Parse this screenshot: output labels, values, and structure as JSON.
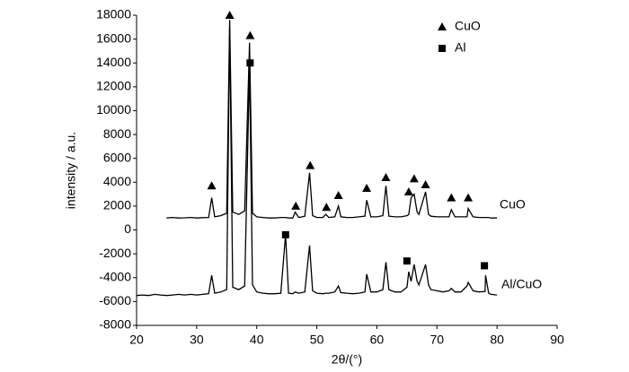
{
  "chart_data": {
    "type": "line",
    "xlabel": "2θ/(°)",
    "ylabel": "intensity / a.u.",
    "xlim": [
      20,
      90
    ],
    "xticks": [
      20,
      30,
      40,
      50,
      60,
      70,
      80,
      90
    ],
    "ylim": [
      -8000,
      18000
    ],
    "yticks": [
      -8000,
      -6000,
      -4000,
      -2000,
      0,
      2000,
      4000,
      6000,
      8000,
      10000,
      12000,
      14000,
      16000,
      18000
    ],
    "x": [
      20,
      21,
      22,
      23,
      24,
      25,
      26,
      27,
      28,
      29,
      30,
      31,
      32,
      32.5,
      33,
      34,
      35,
      35.5,
      36,
      37,
      38,
      38.8,
      39.3,
      40,
      41,
      42,
      43,
      44,
      44.8,
      45.3,
      46,
      46.4,
      47,
      48,
      48.8,
      49.3,
      50,
      51,
      51.5,
      52,
      53,
      53.6,
      54,
      55,
      56,
      57,
      58,
      58.3,
      59,
      60,
      61,
      61.5,
      62,
      63,
      64,
      65,
      65.3,
      65.7,
      66.2,
      66.7,
      67,
      68.1,
      68.6,
      69,
      70,
      71,
      72,
      72.4,
      73,
      74,
      75,
      75.2,
      76,
      77,
      78,
      78.1,
      78.6,
      79,
      80
    ],
    "series": [
      {
        "name": "CuO",
        "color": "#000000",
        "values": [
          null,
          null,
          null,
          null,
          null,
          1000,
          1050,
          1000,
          1020,
          1050,
          1000,
          1030,
          1050,
          2700,
          1100,
          1200,
          1400,
          17600,
          1500,
          1300,
          1600,
          15700,
          1400,
          1100,
          1050,
          1000,
          1000,
          1050,
          1050,
          1000,
          1000,
          1500,
          1050,
          1150,
          4800,
          1200,
          1050,
          1050,
          1300,
          1050,
          1100,
          2000,
          1100,
          1050,
          1050,
          1100,
          1150,
          2500,
          1100,
          1100,
          1200,
          3700,
          1150,
          1100,
          1100,
          1200,
          1300,
          2700,
          3000,
          1500,
          1300,
          3200,
          1300,
          1150,
          1100,
          1100,
          1100,
          1700,
          1100,
          1100,
          1100,
          1800,
          1100,
          1050,
          1050,
          1050,
          1050,
          1000,
          1000
        ]
      },
      {
        "name": "Al/CuO",
        "color": "#000000",
        "values": [
          -5500,
          -5450,
          -5500,
          -5400,
          -5450,
          -5500,
          -5450,
          -5400,
          -5450,
          -5400,
          -5450,
          -5400,
          -5350,
          -3800,
          -5300,
          -5200,
          -5000,
          17000,
          -4800,
          -5000,
          -4700,
          13800,
          -4600,
          -5200,
          -5300,
          -5350,
          -5350,
          -5300,
          -400,
          -5300,
          -5350,
          -5200,
          -5300,
          -5200,
          -1300,
          -5100,
          -5300,
          -5350,
          -5300,
          -5300,
          -5200,
          -4700,
          -5250,
          -5300,
          -5350,
          -5300,
          -5200,
          -3700,
          -5200,
          -5200,
          -5000,
          -2700,
          -5000,
          -5200,
          -5200,
          -4800,
          -3500,
          -4300,
          -2900,
          -4300,
          -4600,
          -2900,
          -4600,
          -5000,
          -5100,
          -5200,
          -5100,
          -4900,
          -5200,
          -5200,
          -4700,
          -4400,
          -5100,
          -5200,
          -5150,
          -3800,
          -5300,
          -5400,
          -5450
        ]
      }
    ],
    "markers": [
      {
        "name": "CuO",
        "symbol": "triangle",
        "x": [
          32.5,
          35.5,
          38.9,
          46.5,
          48.9,
          51.6,
          53.6,
          58.3,
          61.5,
          65.3,
          66.2,
          68.1,
          72.4,
          75.2
        ],
        "y": [
          3700,
          18000,
          16300,
          2000,
          5400,
          1900,
          2900,
          3500,
          4400,
          3200,
          4300,
          3800,
          2700,
          2700
        ]
      },
      {
        "name": "Al",
        "symbol": "square",
        "x": [
          38.9,
          44.8,
          65.0,
          77.9
        ],
        "y": [
          14000,
          -400,
          -2600,
          -3000
        ]
      }
    ]
  }
}
